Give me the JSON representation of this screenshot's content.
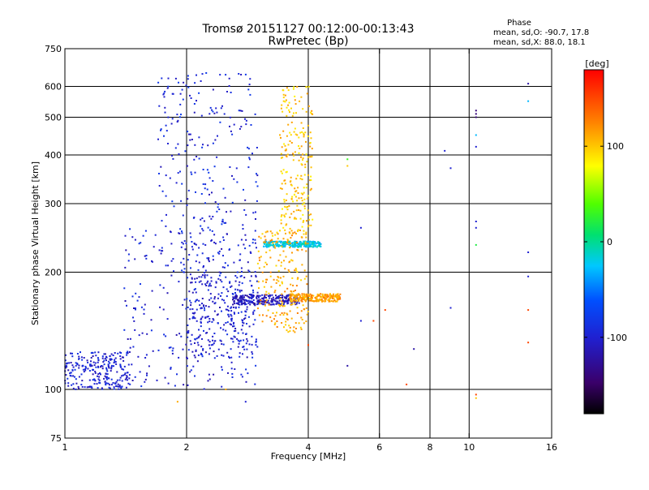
{
  "chart_data": {
    "type": "scatter",
    "title": "Tromsø 20151127 00:12:00-00:13:43",
    "subtitle": "RwPretec (Bp)",
    "xlabel": "Frequency [MHz]",
    "ylabel": "Stationary phase Virtual Height [km]",
    "x_scale": "log",
    "y_scale": "log",
    "xlim": [
      1,
      16
    ],
    "ylim": [
      75,
      750
    ],
    "x_ticks": [
      1,
      2,
      4,
      6,
      8,
      10,
      16
    ],
    "y_ticks": [
      75,
      100,
      200,
      300,
      400,
      500,
      600,
      750
    ],
    "x_gridlines": [
      2,
      4,
      6,
      8,
      10
    ],
    "y_gridlines": [
      100,
      200,
      300,
      400,
      500,
      600
    ],
    "grid": true,
    "phase_info": {
      "heading": "Phase",
      "line1": "mean, sd,O: -90.7, 17.8",
      "line2": "mean, sd,X:  88.0, 18.1"
    },
    "colorbar": {
      "label": "[deg]",
      "range": [
        -180,
        180
      ],
      "ticks": [
        -100,
        0,
        100
      ],
      "tick_labels": [
        "-100",
        "0",
        "100"
      ]
    },
    "o_mode_clusters": [
      {
        "x": [
          1.0,
          1.45
        ],
        "y": [
          100,
          125
        ],
        "phase": -100
      },
      {
        "x": [
          1.4,
          3.0
        ],
        "y": [
          100,
          260
        ],
        "phase": -100
      },
      {
        "x": [
          1.7,
          3.0
        ],
        "y": [
          200,
          650
        ],
        "phase": -95
      },
      {
        "x": [
          2.0,
          3.0
        ],
        "y": [
          120,
          200
        ],
        "phase": -100
      },
      {
        "x": [
          2.6,
          3.8
        ],
        "y": [
          165,
          175
        ],
        "phase": -110
      },
      {
        "x": [
          3.1,
          4.3
        ],
        "y": [
          232,
          240
        ],
        "phase": -20
      }
    ],
    "x_mode_clusters": [
      {
        "x": [
          3.0,
          4.0
        ],
        "y": [
          140,
          260
        ],
        "phase": 110
      },
      {
        "x": [
          3.4,
          4.1
        ],
        "y": [
          250,
          600
        ],
        "phase": 100
      },
      {
        "x": [
          3.6,
          4.8
        ],
        "y": [
          168,
          176
        ],
        "phase": 115
      }
    ],
    "isolated_points": [
      {
        "x": 9.0,
        "y": 370,
        "phase": -100
      },
      {
        "x": 8.7,
        "y": 410,
        "phase": -100
      },
      {
        "x": 10.4,
        "y": 520,
        "phase": -140
      },
      {
        "x": 10.4,
        "y": 510,
        "phase": -140
      },
      {
        "x": 10.4,
        "y": 500,
        "phase": -140
      },
      {
        "x": 10.4,
        "y": 450,
        "phase": -30
      },
      {
        "x": 10.4,
        "y": 420,
        "phase": -100
      },
      {
        "x": 10.4,
        "y": 270,
        "phase": -100
      },
      {
        "x": 10.4,
        "y": 260,
        "phase": -100
      },
      {
        "x": 10.4,
        "y": 235,
        "phase": 20
      },
      {
        "x": 14.0,
        "y": 610,
        "phase": -120
      },
      {
        "x": 14.0,
        "y": 550,
        "phase": -30
      },
      {
        "x": 14.0,
        "y": 225,
        "phase": -100
      },
      {
        "x": 14.0,
        "y": 195,
        "phase": -100
      },
      {
        "x": 14.0,
        "y": 160,
        "phase": 150
      },
      {
        "x": 14.0,
        "y": 132,
        "phase": 150
      },
      {
        "x": 9.0,
        "y": 162,
        "phase": -100
      },
      {
        "x": 7.3,
        "y": 127,
        "phase": -120
      },
      {
        "x": 7.0,
        "y": 103,
        "phase": 150
      },
      {
        "x": 10.4,
        "y": 97,
        "phase": 150
      },
      {
        "x": 10.4,
        "y": 95,
        "phase": 100
      },
      {
        "x": 6.2,
        "y": 160,
        "phase": 150
      },
      {
        "x": 5.8,
        "y": 150,
        "phase": 150
      },
      {
        "x": 5.4,
        "y": 150,
        "phase": -100
      },
      {
        "x": 5.0,
        "y": 115,
        "phase": -120
      },
      {
        "x": 4.0,
        "y": 130,
        "phase": 150
      },
      {
        "x": 5.0,
        "y": 390,
        "phase": 30
      },
      {
        "x": 5.0,
        "y": 375,
        "phase": 100
      },
      {
        "x": 5.4,
        "y": 260,
        "phase": -100
      },
      {
        "x": 2.5,
        "y": 100,
        "phase": 110
      },
      {
        "x": 2.8,
        "y": 93,
        "phase": -100
      },
      {
        "x": 1.9,
        "y": 93,
        "phase": 110
      }
    ]
  }
}
